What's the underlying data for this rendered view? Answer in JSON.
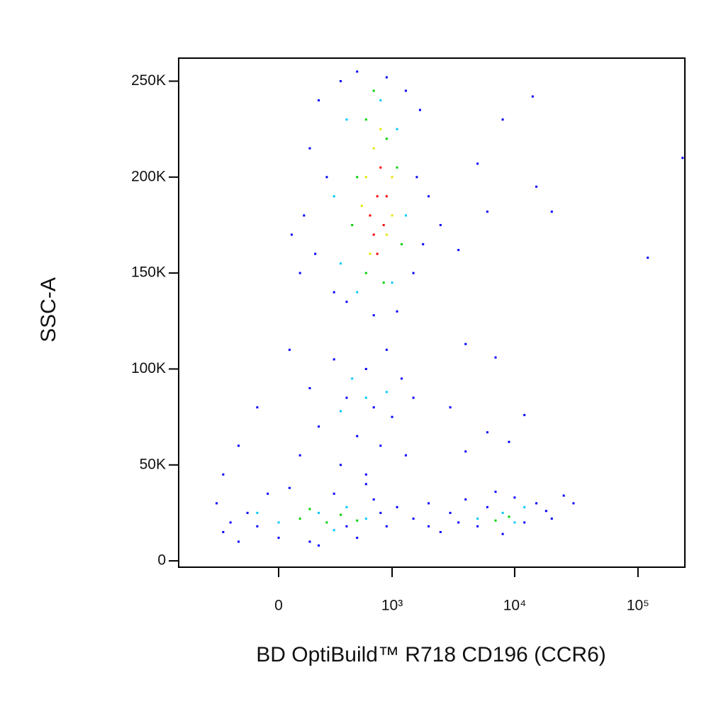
{
  "chart_data": {
    "type": "scatter",
    "x_label": "BD OptiBuild™ R718 CD196 (CCR6)",
    "y_label": "SSC-A",
    "xscale": "biexponential",
    "xlim": [
      -770,
      240000
    ],
    "ylim": [
      -3300,
      262000
    ],
    "xticks": [
      0,
      {
        "value": 1000,
        "label": "10³"
      },
      {
        "value": 10000,
        "label": "10⁴"
      },
      {
        "value": 100000,
        "label": "10⁵"
      }
    ],
    "yticks": [
      0,
      {
        "value": 50000,
        "label": "50K"
      },
      {
        "value": 100000,
        "label": "100K"
      },
      {
        "value": 150000,
        "label": "150K"
      },
      {
        "value": 200000,
        "label": "200K"
      },
      {
        "value": 250000,
        "label": "250K"
      }
    ],
    "series": [
      {
        "color": "#0000ff",
        "x": [
          200,
          350,
          500,
          900,
          1300,
          1700,
          150,
          250,
          120,
          180,
          100,
          300,
          1600,
          2000,
          1800,
          1500,
          400,
          1100,
          700,
          60,
          5000,
          15000,
          20000,
          6000,
          14000,
          120000,
          8000,
          3500,
          4000,
          7000,
          230000,
          2500,
          50,
          300,
          600,
          900,
          1200,
          150,
          400,
          700,
          1000,
          200,
          500,
          800,
          -100,
          -200,
          1500,
          100,
          350,
          1300,
          -300,
          600,
          3000,
          12000,
          6000,
          9000,
          4000,
          -350,
          -300,
          -200,
          -150,
          -50,
          0,
          50,
          150,
          300,
          500,
          700,
          900,
          1100,
          -250,
          200,
          600,
          400,
          800,
          -100,
          1500,
          2000,
          2500,
          3000,
          4000,
          5000,
          6000,
          8000,
          10000,
          12000,
          15000,
          18000,
          25000,
          30000,
          7000,
          2000,
          20000,
          3500
        ],
        "values": [
          240000,
          250000,
          255000,
          252000,
          245000,
          235000,
          215000,
          200000,
          180000,
          160000,
          150000,
          140000,
          200000,
          190000,
          165000,
          150000,
          135000,
          130000,
          128000,
          170000,
          207000,
          195000,
          182000,
          182000,
          242000,
          158000,
          230000,
          162000,
          113000,
          106000,
          210000,
          175000,
          110000,
          105000,
          100000,
          110000,
          95000,
          90000,
          85000,
          80000,
          75000,
          70000,
          65000,
          60000,
          80000,
          60000,
          85000,
          55000,
          50000,
          55000,
          45000,
          45000,
          80000,
          76000,
          67000,
          62000,
          57000,
          30000,
          15000,
          10000,
          25000,
          35000,
          12000,
          38000,
          10000,
          35000,
          12000,
          32000,
          18000,
          28000,
          20000,
          8000,
          40000,
          18000,
          25000,
          18000,
          22000,
          30000,
          15000,
          25000,
          32000,
          18000,
          28000,
          14000,
          33000,
          20000,
          30000,
          26000,
          34000,
          30000,
          36000,
          18000,
          22000,
          20000
        ]
      },
      {
        "color": "#00c8ff",
        "x": [
          400,
          800,
          1100,
          300,
          1300,
          350,
          1000,
          500,
          200,
          0,
          400,
          600,
          -100,
          300,
          8000,
          10000,
          5000,
          12000,
          600,
          350,
          900,
          450
        ],
        "values": [
          230000,
          240000,
          225000,
          190000,
          180000,
          155000,
          145000,
          140000,
          25000,
          20000,
          28000,
          22000,
          25000,
          16000,
          25000,
          20000,
          22000,
          28000,
          85000,
          78000,
          88000,
          95000
        ]
      },
      {
        "color": "#00d200",
        "x": [
          600,
          900,
          500,
          1100,
          450,
          1200,
          600,
          850,
          700,
          100,
          250,
          350,
          500,
          150,
          9000,
          7000
        ],
        "values": [
          230000,
          220000,
          200000,
          205000,
          175000,
          165000,
          150000,
          145000,
          245000,
          22000,
          20000,
          24000,
          21000,
          27000,
          23000,
          21000
        ]
      },
      {
        "color": "#e6e600",
        "x": [
          700,
          1000,
          550,
          900,
          650,
          1000,
          600,
          800
        ],
        "values": [
          215000,
          200000,
          185000,
          170000,
          160000,
          180000,
          200000,
          225000
        ]
      },
      {
        "color": "#ff0000",
        "x": [
          750,
          850,
          700,
          800,
          650,
          900,
          750
        ],
        "values": [
          190000,
          175000,
          170000,
          205000,
          180000,
          190000,
          160000
        ]
      }
    ]
  }
}
